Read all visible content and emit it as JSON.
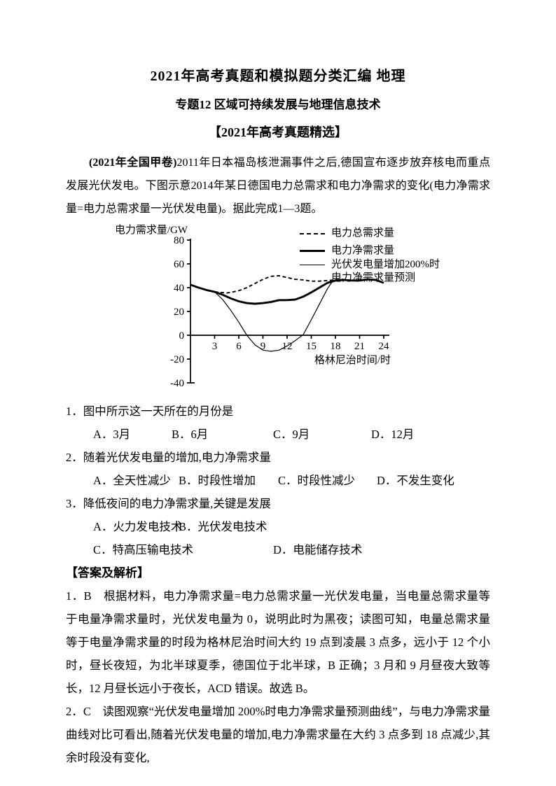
{
  "page": {
    "title": "2021年高考真题和模拟题分类汇编 地理",
    "subtitle": "专题12 区域可持续发展与地理信息技术",
    "section_header": "【2021年高考真题精选】"
  },
  "intro": {
    "source_tag": "(2021年全国甲卷)",
    "text": "2011年日本福岛核泄漏事件之后,德国宣布逐步放弃核电而重点发展光伏发电。下图示意2014年某日德国电力总需求和电力净需求的变化(电力净需求量=电力总需求量一光伏发电量)。据此完成1—3题。"
  },
  "chart_data": {
    "type": "line",
    "ylabel": "电力需求量/GW",
    "xlabel": "格林尼治时间/时",
    "xlim": [
      0,
      24
    ],
    "ylim": [
      -40,
      80
    ],
    "x_ticks": [
      3,
      6,
      9,
      12,
      15,
      18,
      21,
      24
    ],
    "y_ticks": [
      80,
      60,
      40,
      20,
      0,
      -20,
      -40
    ],
    "legend_position": "top-right",
    "grid": false,
    "legend": [
      {
        "label": "电力总需求量",
        "style": "dashed"
      },
      {
        "label": "电力净需求量",
        "style": "thick"
      },
      {
        "label": "光伏发电量增加200%时",
        "label2": "电力净需求量预测",
        "style": "thin"
      }
    ],
    "series": [
      {
        "name": "电力总需求量",
        "style": "dashed",
        "x": [
          3,
          4,
          4.5,
          5,
          6,
          7,
          8,
          9,
          10,
          11,
          12,
          13,
          14,
          15,
          16,
          17,
          18,
          19
        ],
        "values": [
          36.5,
          35.8,
          35.5,
          36,
          37.5,
          40,
          43.5,
          47,
          49.5,
          50,
          48.5,
          47,
          46.5,
          45.5,
          45.5,
          46,
          46.5,
          47
        ]
      },
      {
        "name": "电力净需求量",
        "style": "thick",
        "x": [
          0,
          1,
          2,
          3,
          4,
          5,
          6,
          7,
          8,
          9,
          10,
          11,
          12,
          13,
          14,
          15,
          16,
          17,
          18,
          19,
          20,
          21,
          22,
          23,
          24
        ],
        "values": [
          42.5,
          40,
          38,
          36.5,
          34,
          31,
          28.5,
          27,
          26.5,
          27,
          28,
          29.5,
          29.5,
          30,
          32.5,
          36,
          40,
          44,
          46,
          46.5,
          46,
          46,
          47,
          46.5,
          44
        ]
      },
      {
        "name": "光伏发电量增加200%时电力净需求量预测",
        "style": "thin",
        "x": [
          3,
          4,
          5,
          6,
          7,
          8,
          9,
          10,
          11,
          12,
          13,
          14,
          15,
          16,
          17,
          17.6
        ],
        "values": [
          36.5,
          30,
          21,
          11,
          0,
          -8,
          -12.5,
          -13.5,
          -12.5,
          -9,
          -4.5,
          0.5,
          13,
          26,
          39,
          45
        ]
      }
    ]
  },
  "questions": [
    {
      "stem": "1．图中所示这一天所在的月份是",
      "options": [
        "A．3月",
        "B．6月",
        "C．9月",
        "D．12月"
      ]
    },
    {
      "stem": "2．随着光伏发电量的增加,电力净需求量",
      "options": [
        "A．全天性减少",
        "B．时段性增加",
        "C．时段性减少",
        "D．不发生变化"
      ]
    },
    {
      "stem": "3．降低夜间的电力净需求量,关键是发展",
      "options": [
        "A．火力发电技术",
        "B．光伏发电技术",
        "C．特高压输电技术",
        "D．电能储存技术"
      ]
    }
  ],
  "answers": {
    "header": "【答案及解析】",
    "items": [
      {
        "text": "1．B　根据材料，电力净需求量=电力总需求量一光伏发电量，当电量总需求量等于电量净需求量时，光伏发电量为 0，说明此时为黑夜；读图可知，电量总需求量等于电量净需求量的时段为格林尼治时间大约 19 点到凌晨 3 点多，远小于 12 个小时，昼长夜短，为北半球夏季，德国位于北半球，B 正确；3 月和 9 月昼夜大致等长，12 月昼长远小于夜长，ACD 错误。故选 B。"
      },
      {
        "text": "2．C　读图观察“光伏发电量增加 200%时电力净需求量预测曲线”，与电力净需求量曲线对比可看出,随着光伏发电量的增加,电力净需求量在大约 3 点多到 18 点减少,其余时段没有变化,"
      }
    ]
  }
}
